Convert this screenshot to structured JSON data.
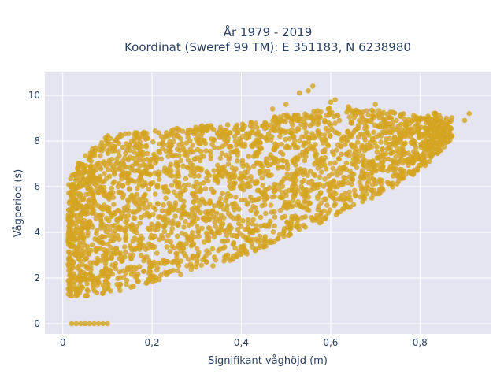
{
  "chart_data": {
    "type": "scatter",
    "title_line1": "År 1979 - 2019",
    "title_line2": "Koordinat (Sweref 99 TM): E 351183, N 6238980",
    "xlabel": "Signifikant våghöjd (m)",
    "ylabel": "Vågperiod (s)",
    "xlim": [
      -0.04,
      0.96
    ],
    "ylim": [
      -0.45,
      11.0
    ],
    "x_ticks": [
      0,
      0.2,
      0.4,
      0.6,
      0.8
    ],
    "x_tick_labels": [
      "0",
      "0,2",
      "0,4",
      "0,6",
      "0,8"
    ],
    "y_ticks": [
      0,
      2,
      4,
      6,
      8,
      10
    ],
    "y_tick_labels": [
      "0",
      "2",
      "4",
      "6",
      "8",
      "10"
    ],
    "grid": true,
    "colors": {
      "marker": "#d4a421",
      "plot_bg": "#e5e5f1",
      "grid": "#ffffff",
      "text": "#2a3f5f"
    },
    "point_cloud_envelope": {
      "x": [
        0.01,
        0.05,
        0.1,
        0.2,
        0.3,
        0.4,
        0.5,
        0.6,
        0.7,
        0.8,
        0.9
      ],
      "y_lower": [
        1.2,
        1.2,
        1.3,
        1.8,
        2.3,
        2.9,
        3.8,
        4.6,
        5.5,
        6.7,
        8.6
      ],
      "y_upper": [
        6.3,
        7.0,
        7.9,
        8.1,
        8.3,
        8.4,
        8.8,
        9.1,
        9.0,
        8.8,
        9.2
      ]
    },
    "series": [
      {
        "x": [
          0.02,
          0.03,
          0.04,
          0.05,
          0.06,
          0.07,
          0.08,
          0.09,
          0.1,
          0.5,
          0.53,
          0.56,
          0.6,
          0.64,
          0.7,
          0.82,
          0.86,
          0.9,
          0.91,
          0.47,
          0.55,
          0.61,
          0.66
        ],
        "y": [
          0,
          0,
          0,
          0,
          0,
          0,
          0,
          0,
          0,
          9.6,
          10.1,
          10.4,
          9.7,
          9.5,
          9.6,
          9.0,
          8.7,
          8.9,
          9.2,
          9.4,
          10.2,
          9.8,
          9.3
        ]
      }
    ]
  }
}
